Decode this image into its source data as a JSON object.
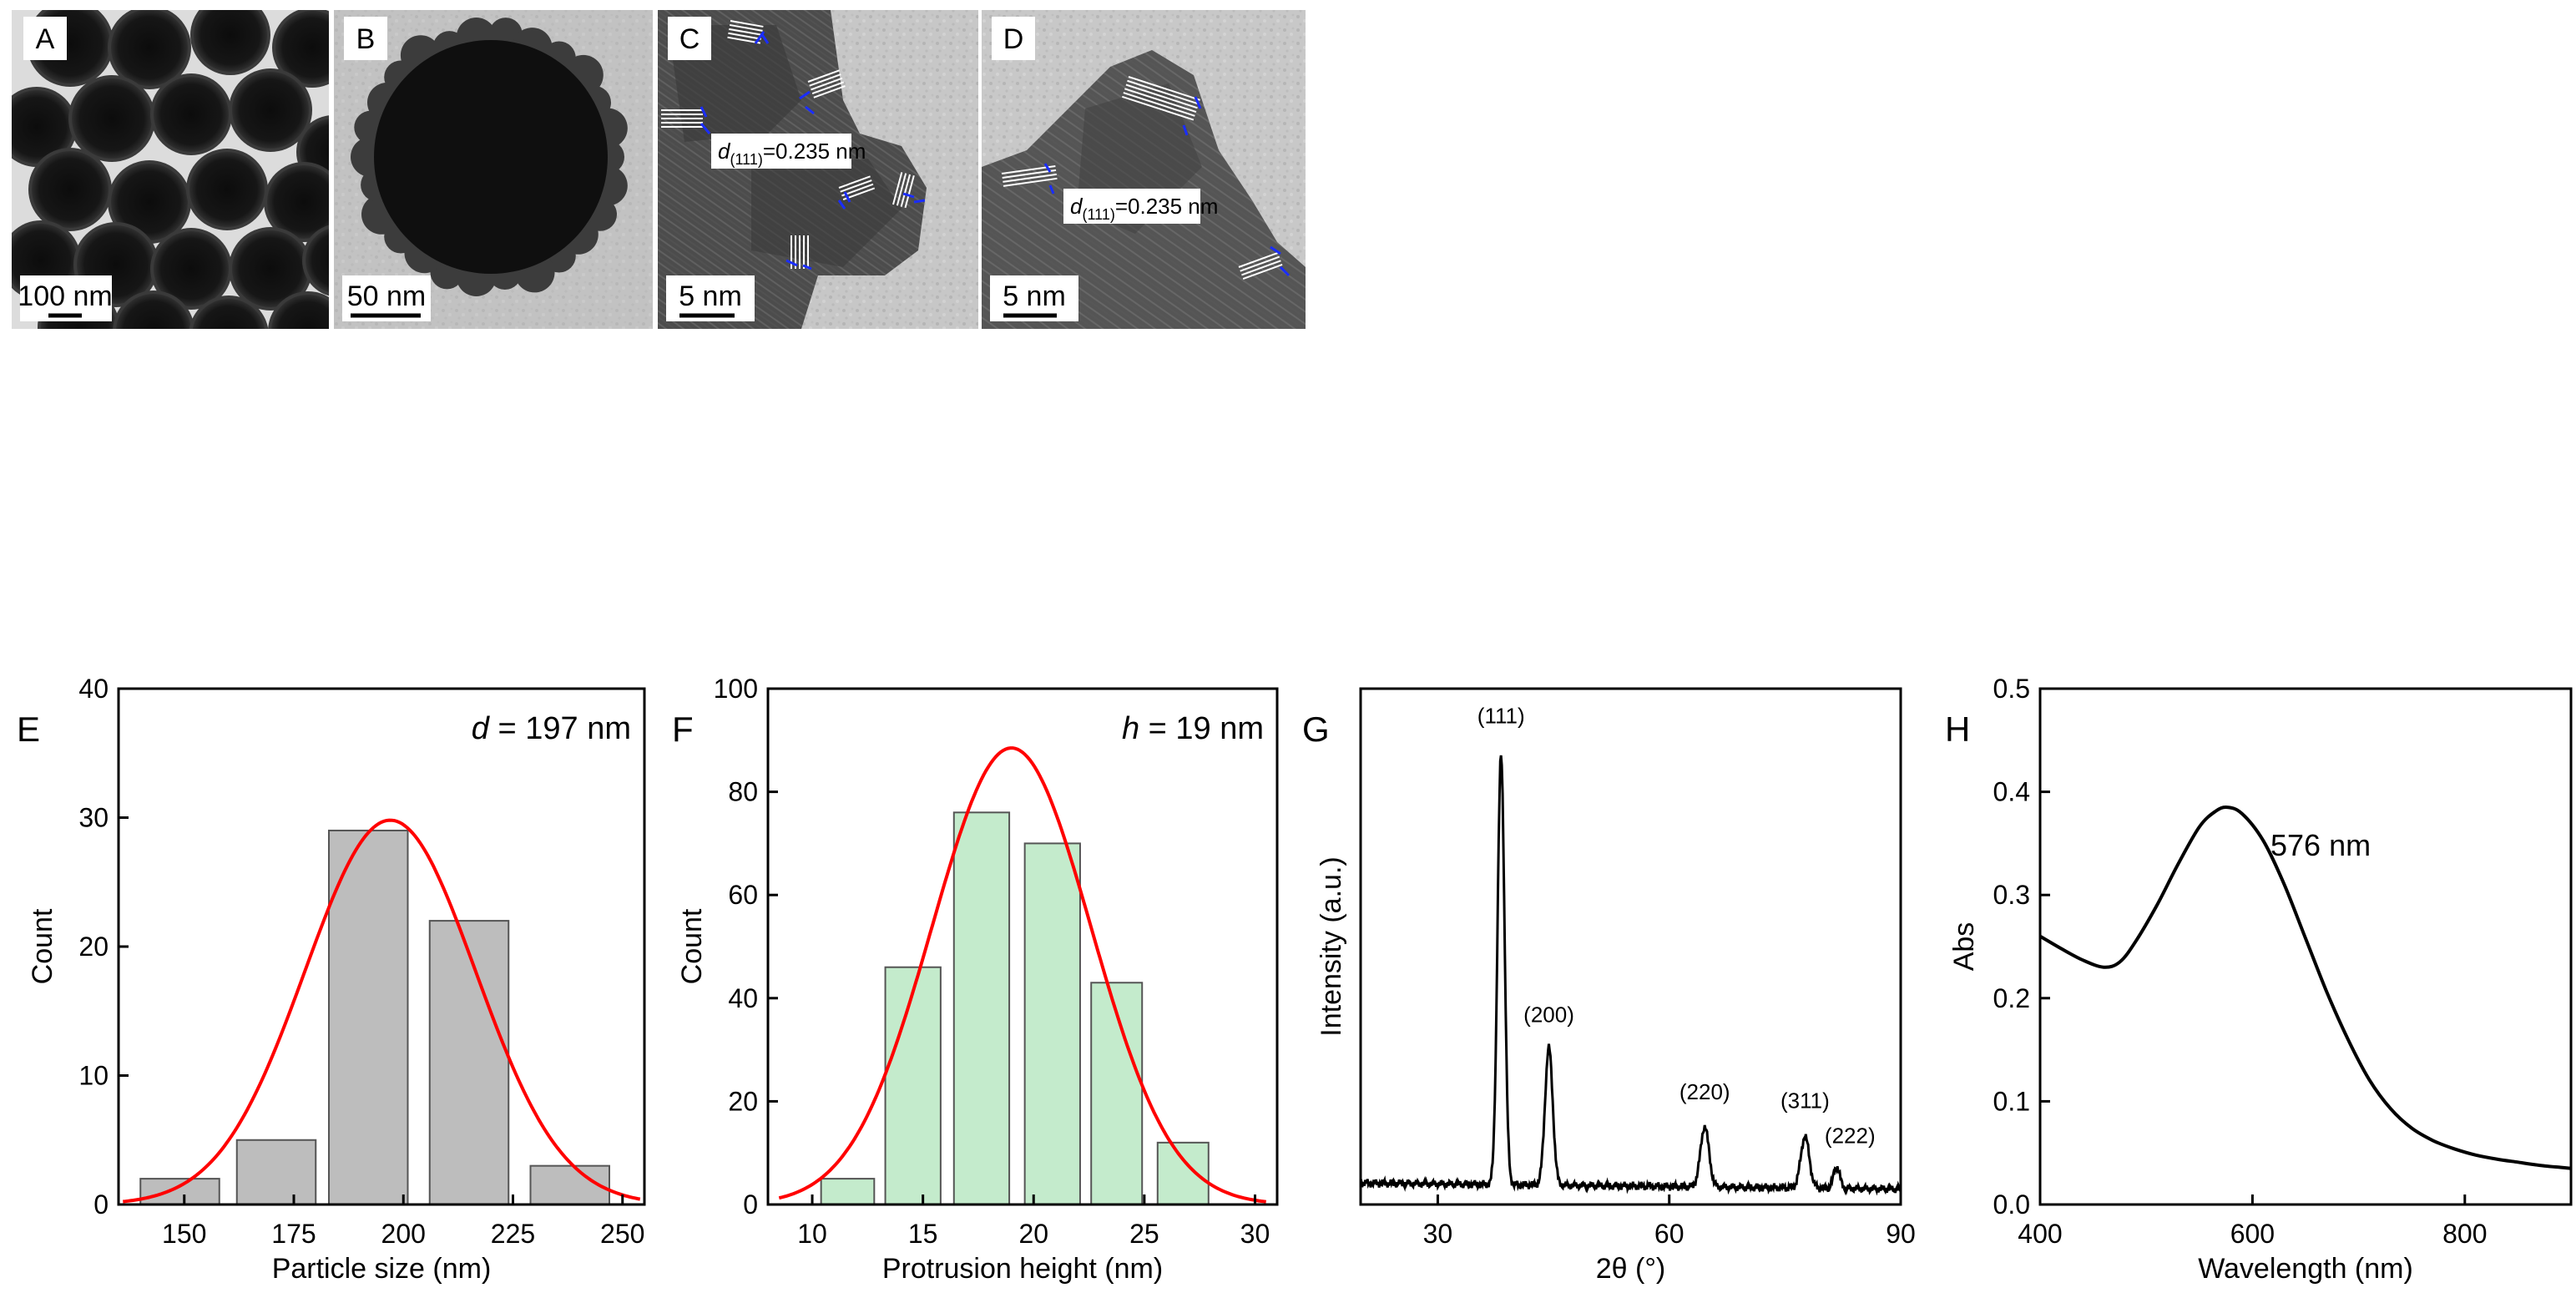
{
  "micrographs": [
    {
      "id": "A",
      "scale_label": "100 nm"
    },
    {
      "id": "B",
      "scale_label": "50 nm"
    },
    {
      "id": "C",
      "scale_label": "5 nm",
      "annotation": {
        "symbol": "d",
        "subscript": "(111)",
        "text": "=0.235 nm"
      }
    },
    {
      "id": "D",
      "scale_label": "5 nm",
      "annotation": {
        "symbol": "d",
        "subscript": "(111)",
        "text": "=0.235 nm"
      }
    }
  ],
  "chart_data": [
    {
      "panel": "E",
      "type": "bar",
      "annotation": {
        "symbol": "d",
        "text": " = 197 nm"
      },
      "xlabel": "Particle size (nm)",
      "ylabel": "Count",
      "xlim": [
        135,
        255
      ],
      "ylim": [
        0,
        40
      ],
      "xticks": [
        150,
        175,
        200,
        225,
        250
      ],
      "yticks": [
        0,
        10,
        20,
        30,
        40
      ],
      "bins": [
        [
          140,
          158
        ],
        [
          162,
          180
        ],
        [
          183,
          201
        ],
        [
          206,
          224
        ],
        [
          229,
          247
        ]
      ],
      "values": [
        2,
        5,
        29,
        22,
        3
      ],
      "bar_color": "#bdbdbd",
      "fit": {
        "type": "gaussian",
        "color": "#ff0000",
        "mean": 197,
        "sigma": 19.5,
        "amplitude": 29.8,
        "range": [
          136,
          254
        ]
      }
    },
    {
      "panel": "F",
      "type": "bar",
      "annotation": {
        "symbol": "h",
        "text": " = 19 nm"
      },
      "xlabel": "Protrusion height (nm)",
      "ylabel": "Count",
      "xlim": [
        8,
        31
      ],
      "ylim": [
        0,
        100
      ],
      "xticks": [
        10,
        15,
        20,
        25,
        30
      ],
      "yticks": [
        0,
        20,
        40,
        60,
        80,
        100
      ],
      "bins": [
        [
          10.4,
          12.8
        ],
        [
          13.3,
          15.8
        ],
        [
          16.4,
          18.9
        ],
        [
          19.6,
          22.1
        ],
        [
          22.6,
          24.9
        ],
        [
          25.6,
          27.9
        ]
      ],
      "values": [
        5,
        46,
        76,
        70,
        43,
        12
      ],
      "bar_color": "#c4ebcc",
      "fit": {
        "type": "gaussian",
        "color": "#ff0000",
        "mean": 19,
        "sigma": 3.6,
        "amplitude": 88.5,
        "range": [
          8.5,
          30.5
        ]
      }
    },
    {
      "panel": "G",
      "type": "line",
      "xlabel": "2θ (°)",
      "ylabel": "Intensity (a.u.)",
      "xlim": [
        20,
        90
      ],
      "ylim": [
        0,
        1.2
      ],
      "xticks": [
        30,
        60,
        90
      ],
      "baseline": 0.05,
      "peaks": [
        {
          "x": 38.2,
          "y": 1.0,
          "w": 0.45,
          "label": "(111)"
        },
        {
          "x": 44.4,
          "y": 0.32,
          "w": 0.5,
          "label": "(200)"
        },
        {
          "x": 64.6,
          "y": 0.14,
          "w": 0.55,
          "label": "(220)"
        },
        {
          "x": 77.6,
          "y": 0.12,
          "w": 0.55,
          "label": "(311)"
        },
        {
          "x": 81.7,
          "y": 0.05,
          "w": 0.4,
          "label": "(222)"
        }
      ]
    },
    {
      "panel": "H",
      "type": "line",
      "xlabel": "Wavelength (nm)",
      "ylabel": "Abs",
      "xlim": [
        400,
        900
      ],
      "ylim": [
        0,
        0.5
      ],
      "xticks": [
        400,
        600,
        800
      ],
      "yticks": [
        0.0,
        0.1,
        0.2,
        0.3,
        0.4,
        0.5
      ],
      "peak_label": "576 nm",
      "points": [
        [
          400,
          0.26
        ],
        [
          420,
          0.248
        ],
        [
          440,
          0.237
        ],
        [
          460,
          0.23
        ],
        [
          475,
          0.235
        ],
        [
          490,
          0.255
        ],
        [
          510,
          0.29
        ],
        [
          530,
          0.33
        ],
        [
          550,
          0.366
        ],
        [
          565,
          0.381
        ],
        [
          576,
          0.385
        ],
        [
          590,
          0.379
        ],
        [
          610,
          0.353
        ],
        [
          630,
          0.31
        ],
        [
          650,
          0.258
        ],
        [
          670,
          0.206
        ],
        [
          690,
          0.16
        ],
        [
          710,
          0.121
        ],
        [
          730,
          0.093
        ],
        [
          750,
          0.074
        ],
        [
          770,
          0.062
        ],
        [
          790,
          0.054
        ],
        [
          810,
          0.048
        ],
        [
          830,
          0.044
        ],
        [
          850,
          0.041
        ],
        [
          870,
          0.038
        ],
        [
          890,
          0.036
        ],
        [
          900,
          0.035
        ]
      ]
    }
  ]
}
